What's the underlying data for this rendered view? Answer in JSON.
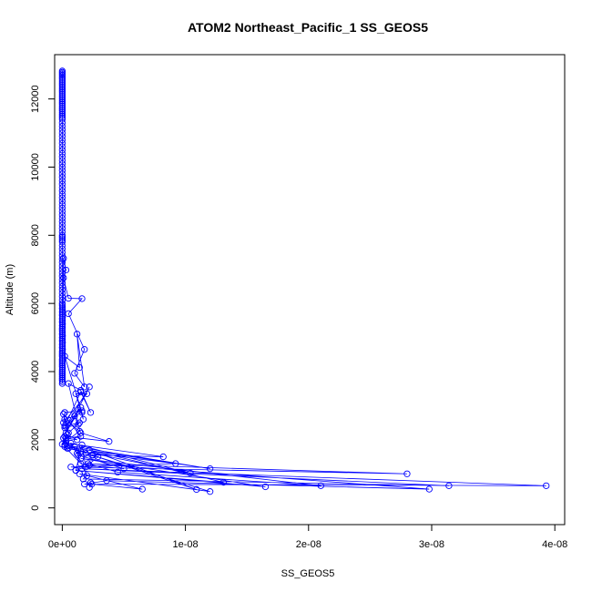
{
  "colors": {
    "series": "#0000ff",
    "axis": "#000000",
    "background": "#ffffff"
  },
  "chart_data": {
    "type": "line",
    "title": "ATOM2 Northeast_Pacific_1 SS_GEOS5",
    "xlabel": "SS_GEOS5",
    "ylabel": "Altitude (m)",
    "xlim": [
      -6.2e-10,
      4.08e-08
    ],
    "ylim": [
      -490,
      13300
    ],
    "grid": false,
    "legend": "none",
    "marker": "open-circle",
    "x_ticks": [
      {
        "value": 0,
        "label": "0e+00"
      },
      {
        "value": 1e-08,
        "label": "1e-08"
      },
      {
        "value": 2e-08,
        "label": "2e-08"
      },
      {
        "value": 3e-08,
        "label": "3e-08"
      },
      {
        "value": 4e-08,
        "label": "4e-08"
      }
    ],
    "y_ticks": [
      {
        "value": 0,
        "label": "0"
      },
      {
        "value": 2000,
        "label": "2000"
      },
      {
        "value": 4000,
        "label": "4000"
      },
      {
        "value": 6000,
        "label": "6000"
      },
      {
        "value": 8000,
        "label": "8000"
      },
      {
        "value": 10000,
        "label": "10000"
      },
      {
        "value": 12000,
        "label": "12000"
      }
    ],
    "series": [
      {
        "x": [
          0,
          0,
          0,
          0,
          0,
          0,
          0,
          0,
          0,
          0,
          0,
          0,
          0,
          0,
          0,
          0,
          0,
          0,
          0,
          0,
          0,
          0,
          0,
          0,
          0,
          0,
          0,
          0,
          0,
          0,
          0,
          0,
          0,
          0,
          0,
          0,
          0,
          0,
          0,
          0,
          0,
          0,
          0,
          0,
          0,
          0,
          0,
          0,
          0,
          0,
          0,
          0,
          0,
          0,
          0,
          0,
          0,
          0,
          0,
          0,
          0,
          0,
          0,
          0,
          0,
          0,
          0,
          0,
          0,
          0,
          0,
          0,
          0,
          0,
          0,
          0,
          0,
          0,
          0,
          0,
          0,
          0,
          0,
          0,
          0,
          0,
          0,
          1e-11,
          0,
          2e-11,
          0,
          1e-11,
          0,
          2e-11,
          0,
          1e-11,
          0,
          2e-11,
          0,
          1e-11,
          0,
          0,
          1e-11,
          0,
          2e-11,
          0,
          1e-11,
          0,
          2e-11,
          0,
          1e-11,
          0,
          2e-11,
          0,
          0,
          0,
          0,
          1e-11,
          0,
          0,
          0,
          0,
          0,
          1e-11,
          0,
          0,
          0,
          0,
          0,
          0,
          0,
          1e-11,
          0,
          1e-10,
          3e-10,
          1e-10,
          5e-10,
          1.6e-09,
          5e-10,
          1.8e-09,
          1e-09,
          1.8e-09,
          1.2e-09,
          1.4e-09,
          2e-10,
          1.6e-09,
          1.7e-09,
          1.1e-09,
          2e-09,
          1e-10,
          2e-10,
          1.6e-09,
          3e-10,
          2.2e-09,
          3e-10,
          1.5e-09,
          2e-10,
          1.3e-09,
          5e-10,
          1.5e-09,
          2.3e-09,
          1.5e-09,
          2e-10,
          1.4e-09,
          5e-10,
          1e-10,
          1.5e-09,
          3e-10,
          1.2e-09,
          4e-10,
          0,
          1.4e-09,
          2e-10,
          1e-09,
          1.5e-09,
          3.8e-09,
          2e-10,
          2e-10,
          1e-10,
          5e-10,
          1.5e-09,
          3e-10,
          1.3e-09,
          1.9e-09,
          2.5e-09,
          8.2e-09,
          3e-10,
          1.5e-09,
          9.2e-09,
          7e-10,
          2.8e-08,
          1.5e-09,
          2e-10,
          1.2e-08,
          1e-09,
          4e-10,
          1.04e-08,
          7e-10,
          1.3e-09,
          5e-09,
          2.2e-09,
          1.1e-09,
          1.6e-09,
          1.9e-09,
          2.9e-09,
          1.2e-09,
          2e-09,
          1.7e-09,
          3.14e-08,
          1.6e-09,
          3.93e-08,
          1.8e-09,
          3.6e-09,
          2.98e-08,
          2.1e-09,
          4.5e-09,
          2.1e-08,
          1.5e-09,
          1.65e-08,
          1.1e-09,
          1.31e-08,
          2.2e-09,
          1.09e-08,
          2.4e-09,
          1.2e-08,
          1.4e-09,
          6.5e-09,
          2.4e-09,
          2.3e-09,
          2.2e-09
        ],
        "y": [
          12820,
          12780,
          12740,
          12700,
          12650,
          12600,
          12550,
          12500,
          12450,
          12400,
          12350,
          12300,
          12250,
          12200,
          12150,
          12100,
          12050,
          12000,
          11950,
          11900,
          11850,
          11800,
          11750,
          11700,
          11650,
          11600,
          11550,
          11500,
          11450,
          11400,
          11300,
          11200,
          11100,
          11000,
          10900,
          10800,
          10700,
          10600,
          10500,
          10400,
          10300,
          10200,
          10100,
          10000,
          9900,
          9800,
          9700,
          9600,
          9500,
          9400,
          9300,
          9200,
          9100,
          9000,
          8900,
          8800,
          8700,
          8600,
          8500,
          8400,
          8300,
          8200,
          8100,
          8000,
          7950,
          7900,
          7850,
          7800,
          7700,
          7600,
          7500,
          7400,
          7300,
          7200,
          7100,
          7000,
          6900,
          6800,
          6700,
          6600,
          6500,
          6400,
          6300,
          6200,
          6100,
          6000,
          5950,
          5900,
          5850,
          5800,
          5750,
          5700,
          5650,
          5600,
          5550,
          5500,
          5450,
          5400,
          5350,
          5300,
          5250,
          5200,
          5150,
          5100,
          5050,
          5000,
          4950,
          4900,
          4850,
          4800,
          4750,
          4700,
          4650,
          4600,
          4550,
          4500,
          4450,
          4400,
          4350,
          4300,
          4250,
          4200,
          4150,
          4100,
          4050,
          4000,
          3950,
          3900,
          3850,
          3800,
          3750,
          3700,
          3650,
          7320,
          6980,
          6750,
          6150,
          6140,
          5700,
          4650,
          3950,
          3550,
          5100,
          4120,
          4450,
          2800,
          2600,
          3350,
          3350,
          2500,
          2800,
          2850,
          2400,
          3550,
          2200,
          2950,
          2350,
          2450,
          3650,
          3450,
          2800,
          3400,
          2400,
          2500,
          2200,
          2750,
          2100,
          2050,
          2000,
          2150,
          1870,
          2250,
          2600,
          2700,
          2200,
          1950,
          2100,
          1850,
          2050,
          1750,
          1650,
          1950,
          1700,
          1600,
          1550,
          1500,
          1900,
          1650,
          1300,
          1200,
          1000,
          1300,
          1800,
          1150,
          1800,
          1750,
          1020,
          1900,
          1550,
          1150,
          1250,
          1100,
          1850,
          1200,
          1500,
          1600,
          950,
          850,
          650,
          1150,
          650,
          700,
          800,
          550,
          1300,
          1050,
          650,
          1450,
          620,
          1100,
          750,
          1700,
          540,
          1550,
          480,
          1000,
          550,
          700,
          740,
          600
        ]
      }
    ]
  }
}
